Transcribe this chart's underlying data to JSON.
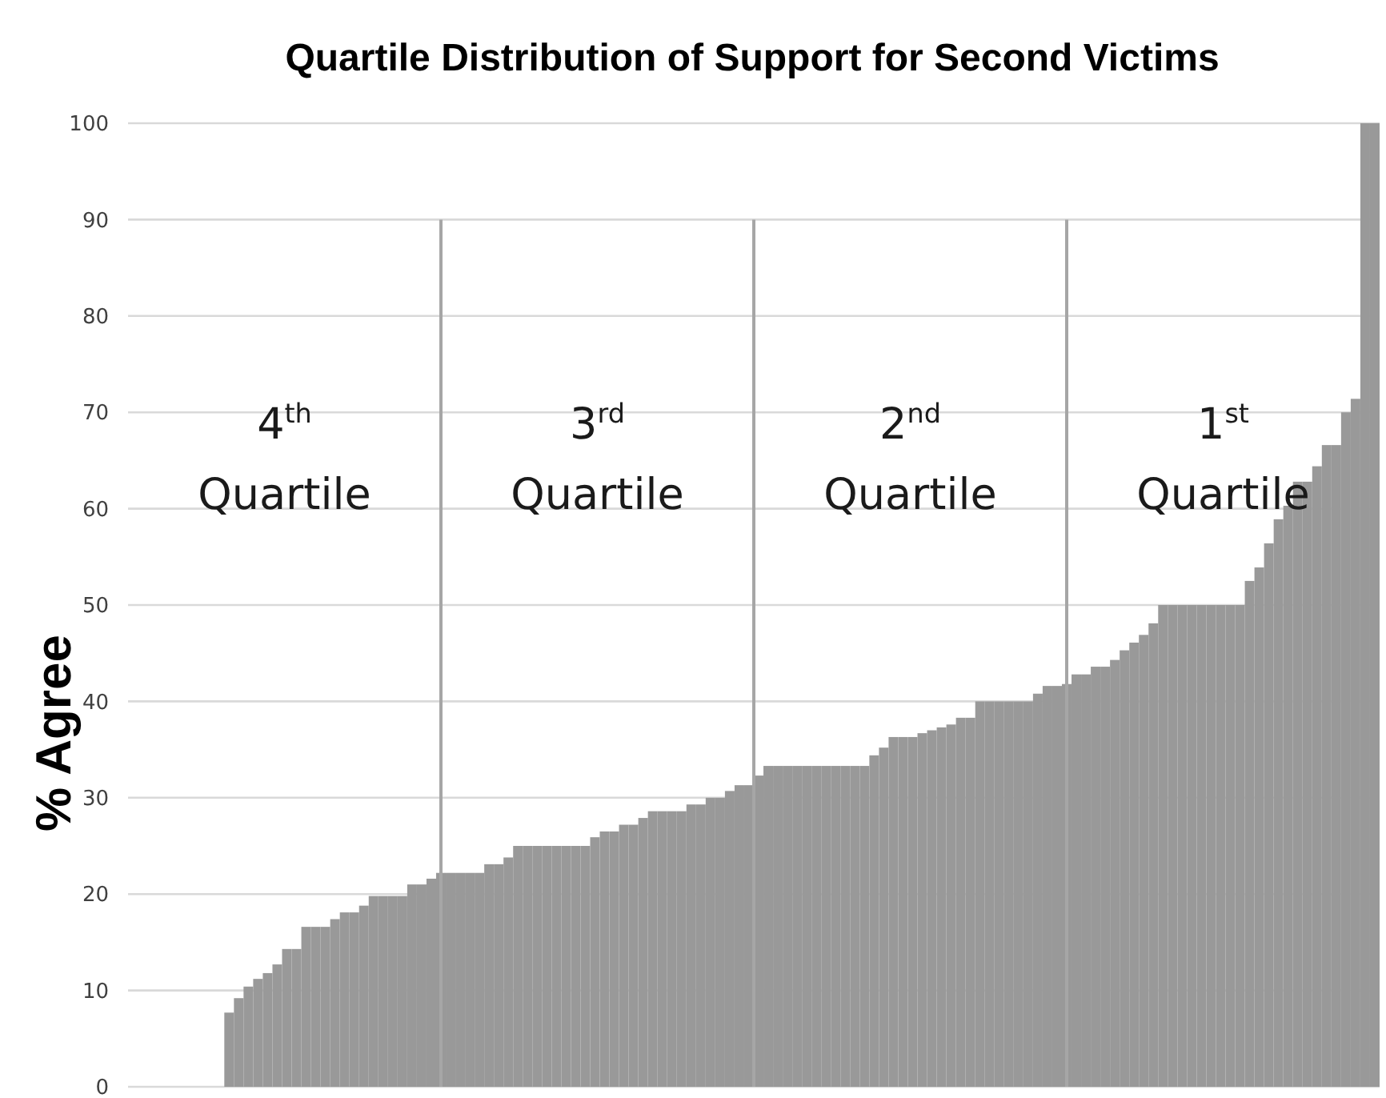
{
  "chart_data": {
    "type": "bar",
    "title": "Quartile Distribution of Support for Second Victims",
    "ylabel": "% Agree",
    "categories": [
      null,
      null,
      null,
      null,
      null,
      null,
      null,
      null,
      null,
      null,
      null,
      null,
      null,
      null,
      null,
      null,
      null,
      null,
      null,
      null,
      null,
      null,
      null,
      null,
      null,
      null,
      null,
      null,
      null,
      null,
      null,
      null,
      null,
      null,
      null,
      null,
      null,
      null,
      null,
      null,
      null,
      null,
      null,
      null,
      null,
      null,
      null,
      null,
      null,
      null,
      null,
      null,
      null,
      null,
      null,
      null,
      null,
      null,
      null,
      null,
      null,
      null,
      null,
      null,
      null,
      null,
      null,
      null,
      null,
      null,
      null,
      null,
      null,
      null,
      null,
      null,
      null,
      null,
      null,
      null,
      null,
      null,
      null,
      null,
      null,
      null,
      null,
      null,
      null,
      null,
      null,
      null,
      null,
      null,
      null,
      null,
      null,
      null,
      null,
      null,
      null,
      null,
      null,
      null,
      null,
      null,
      null,
      null,
      null,
      null,
      null,
      null,
      null,
      null,
      null,
      null,
      null,
      null,
      null,
      null,
      null,
      null,
      null,
      null,
      null,
      null,
      null,
      null,
      null,
      null
    ],
    "values": [
      0,
      0,
      0,
      0,
      0,
      0,
      0,
      0,
      0,
      0,
      7.7,
      9.2,
      10.4,
      11.2,
      11.8,
      12.7,
      14.3,
      14.3,
      16.6,
      16.6,
      16.6,
      17.4,
      18.1,
      18.1,
      18.8,
      19.8,
      19.8,
      19.8,
      19.8,
      21,
      21,
      21.6,
      22.2,
      22.2,
      22.2,
      22.2,
      22.2,
      23.1,
      23.1,
      23.8,
      25,
      25,
      25,
      25,
      25,
      25,
      25,
      25,
      25.9,
      26.5,
      26.5,
      27.2,
      27.2,
      27.9,
      28.6,
      28.6,
      28.6,
      28.6,
      29.3,
      29.3,
      30,
      30,
      30.7,
      31.3,
      31.3,
      32.3,
      33.3,
      33.3,
      33.3,
      33.3,
      33.3,
      33.3,
      33.3,
      33.3,
      33.3,
      33.3,
      33.3,
      34.4,
      35.2,
      36.3,
      36.3,
      36.3,
      36.7,
      37,
      37.3,
      37.6,
      38.3,
      38.3,
      40,
      40,
      40,
      40,
      40,
      40,
      40.8,
      41.6,
      41.6,
      41.8,
      42.8,
      42.8,
      43.6,
      43.6,
      44.3,
      45.3,
      46.1,
      46.9,
      48.1,
      50,
      50,
      50,
      50,
      50,
      50,
      50,
      50,
      50,
      52.5,
      53.9,
      56.4,
      58.9,
      60.3,
      62.8,
      62.8,
      64.4,
      66.6,
      66.6,
      70,
      71.4,
      100,
      100
    ],
    "color": "#999999",
    "ylim": [
      0,
      100
    ],
    "yticks": [
      0,
      10,
      20,
      30,
      40,
      50,
      60,
      70,
      80,
      90,
      100
    ],
    "grid": "y",
    "tick_labels": "y",
    "annotations": [
      "4$^{th}$ Quartile",
      "3$^{rd}$ Quartile",
      "2$^{nd}$ Quartile",
      "1$^{st}$ Quartile"
    ]
  }
}
